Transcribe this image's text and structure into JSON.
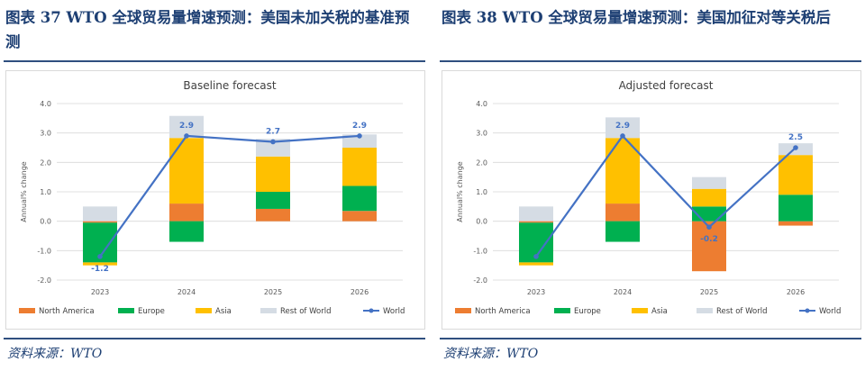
{
  "colors": {
    "north_america": "#ed7d31",
    "europe": "#00b050",
    "asia": "#ffc000",
    "rest_of_world": "#d5dce4",
    "world": "#4472c4"
  },
  "legend": [
    "North America",
    "Europe",
    "Asia",
    "Rest of World",
    "World"
  ],
  "panels": [
    {
      "fig_title": "图表 37   WTO 全球贸易量增速预测：美国未加关税的基准预测",
      "source": "资料来源：WTO",
      "chart_data": {
        "type": "bar",
        "stacked": true,
        "title": "Baseline forecast",
        "ylabel": "Annual% change",
        "ylim": [
          -2.0,
          4.0
        ],
        "yticks": [
          "-2.0",
          "-1.0",
          "0.0",
          "1.0",
          "2.0",
          "3.0",
          "4.0"
        ],
        "categories": [
          "2023",
          "2024",
          "2025",
          "2026"
        ],
        "series": [
          {
            "name": "North America",
            "values": [
              -0.05,
              0.6,
              0.42,
              0.35
            ]
          },
          {
            "name": "Europe",
            "values": [
              -1.35,
              -0.7,
              0.58,
              0.85
            ]
          },
          {
            "name": "Asia",
            "values": [
              -0.1,
              2.23,
              1.2,
              1.3
            ]
          },
          {
            "name": "Rest of World",
            "values": [
              0.5,
              0.75,
              0.6,
              0.45
            ]
          }
        ],
        "line": {
          "name": "World",
          "values": [
            -1.2,
            2.9,
            2.7,
            2.9
          ]
        },
        "line_labels": [
          "-1.2",
          "2.9",
          "2.7",
          "2.9"
        ]
      }
    },
    {
      "fig_title": "图表 38   WTO 全球贸易量增速预测：美国加征对等关税后",
      "source": "资料来源：WTO",
      "chart_data": {
        "type": "bar",
        "stacked": true,
        "title": "Adjusted forecast",
        "ylabel": "Annual% change",
        "ylim": [
          -2.0,
          4.0
        ],
        "yticks": [
          "-2.0",
          "-1.0",
          "0.0",
          "1.0",
          "2.0",
          "3.0",
          "4.0"
        ],
        "categories": [
          "2023",
          "2024",
          "2025",
          "2026"
        ],
        "series": [
          {
            "name": "North America",
            "values": [
              -0.05,
              0.6,
              -1.7,
              -0.15
            ]
          },
          {
            "name": "Europe",
            "values": [
              -1.35,
              -0.7,
              0.5,
              0.9
            ]
          },
          {
            "name": "Asia",
            "values": [
              -0.1,
              2.23,
              0.6,
              1.35
            ]
          },
          {
            "name": "Rest of World",
            "values": [
              0.5,
              0.7,
              0.4,
              0.4
            ]
          }
        ],
        "line": {
          "name": "World",
          "values": [
            -1.2,
            2.9,
            -0.2,
            2.5
          ]
        },
        "line_labels": [
          "",
          "2.9",
          "-0.2",
          "2.5"
        ]
      }
    }
  ]
}
